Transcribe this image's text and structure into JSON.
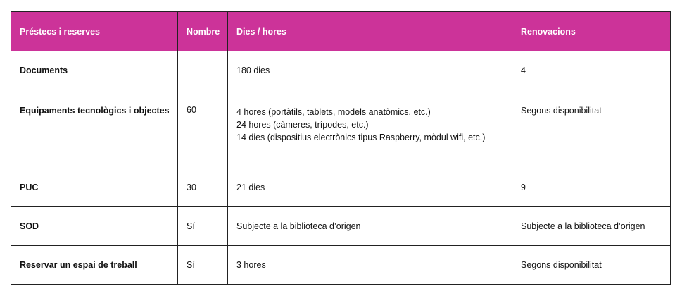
{
  "header_color": "#cc3399",
  "headers": [
    "Préstecs i reserves",
    "Nombre",
    "Dies / hores",
    "Renovacions"
  ],
  "rows": [
    {
      "label": "Documents",
      "nombre": "60",
      "dies": [
        "180 dies"
      ],
      "renovacions": "4"
    },
    {
      "label": "Equipaments tecnològics i objectes",
      "dies": [
        "4 hores (portàtils, tablets, models anatòmics, etc.)",
        "24 hores (càmeres, trípodes, etc.)",
        "14 dies (dispositius electrònics tipus Raspberry, mòdul wifi, etc.)"
      ],
      "renovacions": "Segons disponibilitat"
    },
    {
      "label": "PUC",
      "nombre": "30",
      "dies": [
        "21 dies"
      ],
      "renovacions": "9"
    },
    {
      "label": "SOD",
      "nombre": "Sí",
      "dies": [
        "Subjecte a la biblioteca d’origen"
      ],
      "renovacions": "Subjecte a la biblioteca d’origen"
    },
    {
      "label": "Reservar un espai de treball",
      "nombre": "Sí",
      "dies": [
        "3 hores"
      ],
      "renovacions": "Segons disponibilitat"
    }
  ]
}
